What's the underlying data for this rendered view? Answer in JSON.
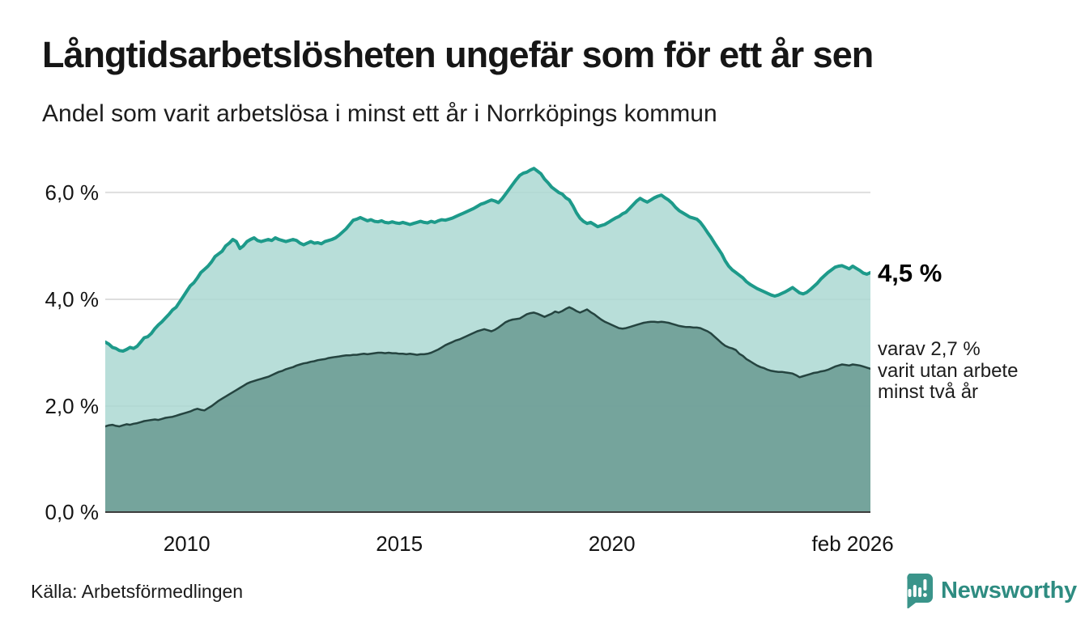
{
  "header": {
    "title": "Långtidsarbetslösheten ungefär som för ett år sen",
    "subtitle": "Andel som varit arbetslösa i minst ett år i Norrköpings kommun"
  },
  "axes": {
    "y_ticks": [
      {
        "label": "6,0 %",
        "value": 6.0
      },
      {
        "label": "4,0 %",
        "value": 4.0
      },
      {
        "label": "2,0 %",
        "value": 2.0
      },
      {
        "label": "0,0 %",
        "value": 0.0
      }
    ],
    "x_ticks": [
      {
        "label": "2010",
        "month_index": 23
      },
      {
        "label": "2015",
        "month_index": 83
      },
      {
        "label": "2020",
        "month_index": 143
      },
      {
        "label": "feb 2026",
        "month_index": 211
      }
    ]
  },
  "annotations": {
    "latest_total": "4,5 %",
    "secondary_line1": "varav 2,7 %",
    "secondary_line2": "varit utan arbete",
    "secondary_line3": "minst två år"
  },
  "footer": {
    "source": "Källa: Arbetsförmedlingen",
    "brand": "Newsworthy"
  },
  "colors": {
    "line_total": "#1d9a8a",
    "fill_total": "#abd8d2",
    "line_twoyear": "#254440",
    "fill_twoyear": "#71a099",
    "gridline": "#dedede",
    "baseline": "#3c3c3c",
    "brand_teal": "#2e8c81",
    "logo_teal": "#3a948a"
  },
  "chart_data": {
    "type": "area",
    "title": "Långtidsarbetslösheten ungefär som för ett år sen",
    "subtitle": "Andel som varit arbetslösa i minst ett år i Norrköpings kommun",
    "unit": "%",
    "x_start": "2008-02",
    "x_end": "2026-02",
    "x_interval": "monthly",
    "ylim": [
      0,
      6.65
    ],
    "grid": "horizontal",
    "legend_position": "right-annotations",
    "series": [
      {
        "name": "Arbetslösa minst ett år",
        "latest_label": "4,5 %",
        "line_color": "#1d9a8a",
        "fill_color": "#abd8d2",
        "values": [
          3.2,
          3.16,
          3.1,
          3.08,
          3.04,
          3.03,
          3.06,
          3.1,
          3.08,
          3.12,
          3.2,
          3.28,
          3.3,
          3.36,
          3.45,
          3.52,
          3.58,
          3.65,
          3.72,
          3.8,
          3.85,
          3.95,
          4.05,
          4.15,
          4.25,
          4.31,
          4.4,
          4.5,
          4.56,
          4.62,
          4.7,
          4.8,
          4.85,
          4.9,
          5.0,
          5.05,
          5.12,
          5.08,
          4.95,
          5.0,
          5.08,
          5.12,
          5.15,
          5.1,
          5.08,
          5.1,
          5.12,
          5.1,
          5.15,
          5.12,
          5.1,
          5.08,
          5.1,
          5.12,
          5.1,
          5.05,
          5.02,
          5.05,
          5.08,
          5.05,
          5.06,
          5.04,
          5.08,
          5.1,
          5.12,
          5.15,
          5.2,
          5.26,
          5.32,
          5.4,
          5.48,
          5.5,
          5.53,
          5.5,
          5.47,
          5.49,
          5.46,
          5.45,
          5.47,
          5.44,
          5.43,
          5.45,
          5.43,
          5.42,
          5.44,
          5.42,
          5.4,
          5.42,
          5.44,
          5.46,
          5.44,
          5.43,
          5.46,
          5.44,
          5.47,
          5.49,
          5.48,
          5.5,
          5.52,
          5.55,
          5.58,
          5.61,
          5.64,
          5.67,
          5.7,
          5.74,
          5.78,
          5.8,
          5.83,
          5.86,
          5.84,
          5.81,
          5.88,
          5.97,
          6.06,
          6.15,
          6.24,
          6.32,
          6.36,
          6.38,
          6.42,
          6.45,
          6.4,
          6.35,
          6.25,
          6.18,
          6.1,
          6.05,
          6.0,
          5.97,
          5.9,
          5.86,
          5.75,
          5.62,
          5.52,
          5.46,
          5.42,
          5.44,
          5.4,
          5.36,
          5.38,
          5.4,
          5.44,
          5.48,
          5.52,
          5.55,
          5.6,
          5.63,
          5.7,
          5.77,
          5.84,
          5.89,
          5.85,
          5.82,
          5.86,
          5.9,
          5.93,
          5.95,
          5.9,
          5.86,
          5.8,
          5.72,
          5.66,
          5.62,
          5.58,
          5.54,
          5.52,
          5.5,
          5.44,
          5.35,
          5.25,
          5.16,
          5.05,
          4.95,
          4.85,
          4.72,
          4.62,
          4.55,
          4.5,
          4.45,
          4.4,
          4.33,
          4.28,
          4.24,
          4.2,
          4.17,
          4.14,
          4.11,
          4.08,
          4.06,
          4.08,
          4.11,
          4.14,
          4.18,
          4.22,
          4.17,
          4.12,
          4.1,
          4.13,
          4.18,
          4.24,
          4.3,
          4.38,
          4.44,
          4.5,
          4.55,
          4.6,
          4.62,
          4.63,
          4.6,
          4.57,
          4.62,
          4.58,
          4.54,
          4.49,
          4.47,
          4.5
        ]
      },
      {
        "name": "Arbetslösa minst två år",
        "latest_label": "varav 2,7 % varit utan arbete minst två år",
        "line_color": "#254440",
        "fill_color": "#71a099",
        "values": [
          1.62,
          1.64,
          1.65,
          1.63,
          1.62,
          1.64,
          1.66,
          1.65,
          1.67,
          1.68,
          1.7,
          1.72,
          1.73,
          1.74,
          1.75,
          1.74,
          1.76,
          1.78,
          1.79,
          1.8,
          1.82,
          1.84,
          1.86,
          1.88,
          1.9,
          1.93,
          1.95,
          1.93,
          1.92,
          1.96,
          2.0,
          2.05,
          2.1,
          2.14,
          2.18,
          2.22,
          2.26,
          2.3,
          2.34,
          2.38,
          2.42,
          2.45,
          2.47,
          2.49,
          2.51,
          2.53,
          2.55,
          2.58,
          2.61,
          2.64,
          2.66,
          2.69,
          2.71,
          2.73,
          2.76,
          2.78,
          2.8,
          2.81,
          2.83,
          2.84,
          2.86,
          2.87,
          2.88,
          2.9,
          2.91,
          2.92,
          2.93,
          2.94,
          2.95,
          2.95,
          2.96,
          2.96,
          2.97,
          2.98,
          2.97,
          2.98,
          2.99,
          3.0,
          3.0,
          2.99,
          3.0,
          2.99,
          2.99,
          2.98,
          2.98,
          2.97,
          2.98,
          2.97,
          2.96,
          2.97,
          2.97,
          2.98,
          3.0,
          3.03,
          3.06,
          3.1,
          3.14,
          3.17,
          3.2,
          3.23,
          3.25,
          3.28,
          3.31,
          3.34,
          3.37,
          3.4,
          3.42,
          3.44,
          3.42,
          3.4,
          3.43,
          3.47,
          3.52,
          3.57,
          3.6,
          3.62,
          3.63,
          3.64,
          3.68,
          3.72,
          3.74,
          3.75,
          3.73,
          3.7,
          3.67,
          3.7,
          3.73,
          3.77,
          3.75,
          3.78,
          3.82,
          3.85,
          3.82,
          3.78,
          3.75,
          3.78,
          3.81,
          3.76,
          3.72,
          3.67,
          3.62,
          3.58,
          3.55,
          3.52,
          3.49,
          3.46,
          3.45,
          3.46,
          3.48,
          3.5,
          3.52,
          3.54,
          3.56,
          3.57,
          3.58,
          3.58,
          3.57,
          3.58,
          3.57,
          3.56,
          3.54,
          3.52,
          3.5,
          3.49,
          3.48,
          3.48,
          3.47,
          3.47,
          3.46,
          3.43,
          3.4,
          3.36,
          3.3,
          3.24,
          3.18,
          3.13,
          3.1,
          3.08,
          3.05,
          2.98,
          2.94,
          2.88,
          2.84,
          2.8,
          2.76,
          2.73,
          2.71,
          2.68,
          2.66,
          2.65,
          2.64,
          2.64,
          2.63,
          2.62,
          2.61,
          2.58,
          2.54,
          2.56,
          2.58,
          2.6,
          2.62,
          2.63,
          2.65,
          2.66,
          2.68,
          2.71,
          2.74,
          2.76,
          2.78,
          2.77,
          2.76,
          2.78,
          2.77,
          2.76,
          2.74,
          2.72,
          2.7
        ]
      }
    ]
  }
}
